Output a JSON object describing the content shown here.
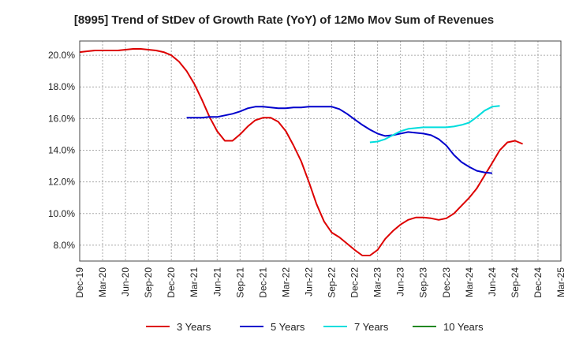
{
  "chart_data": {
    "type": "line",
    "title": "[8995]  Trend of StDev of Growth Rate (YoY) of 12Mo Mov Sum of Revenues",
    "xlabel": "",
    "ylabel": "",
    "ylim": [
      7.0,
      20.9
    ],
    "y_ticks": [
      8.0,
      10.0,
      12.0,
      14.0,
      16.0,
      18.0,
      20.0
    ],
    "y_tick_labels": [
      "8.0%",
      "10.0%",
      "12.0%",
      "14.0%",
      "16.0%",
      "18.0%",
      "20.0%"
    ],
    "x_tick_labels": [
      "Dec-19",
      "Mar-20",
      "Jun-20",
      "Sep-20",
      "Dec-20",
      "Mar-21",
      "Jun-21",
      "Sep-21",
      "Dec-21",
      "Mar-22",
      "Jun-22",
      "Sep-22",
      "Dec-22",
      "Mar-23",
      "Jun-23",
      "Sep-23",
      "Dec-23",
      "Mar-24",
      "Jun-24",
      "Sep-24",
      "Dec-24",
      "Mar-25"
    ],
    "x_start": "Dec-19",
    "grid": true,
    "legend_position": "bottom",
    "series": [
      {
        "name": "3 Years",
        "color": "#dd0000",
        "start_index": 0,
        "values": [
          20.2,
          20.25,
          20.3,
          20.3,
          20.3,
          20.3,
          20.35,
          20.4,
          20.4,
          20.35,
          20.3,
          20.2,
          20.0,
          19.6,
          19.0,
          18.2,
          17.2,
          16.1,
          15.2,
          14.6,
          14.6,
          15.0,
          15.5,
          15.9,
          16.05,
          16.05,
          15.8,
          15.2,
          14.3,
          13.3,
          12.0,
          10.6,
          9.5,
          8.8,
          8.5,
          8.1,
          7.7,
          7.35,
          7.35,
          7.7,
          8.4,
          8.9,
          9.3,
          9.6,
          9.75,
          9.75,
          9.7,
          9.6,
          9.7,
          10.0,
          10.5,
          11.0,
          11.6,
          12.4,
          13.2,
          14.0,
          14.5,
          14.6,
          14.4
        ]
      },
      {
        "name": "5 Years",
        "color": "#0000cc",
        "start_index": 14,
        "values": [
          16.05,
          16.05,
          16.05,
          16.1,
          16.1,
          16.2,
          16.3,
          16.45,
          16.65,
          16.75,
          16.75,
          16.7,
          16.65,
          16.65,
          16.7,
          16.7,
          16.75,
          16.75,
          16.75,
          16.75,
          16.6,
          16.3,
          15.95,
          15.6,
          15.3,
          15.05,
          14.9,
          14.95,
          15.05,
          15.15,
          15.1,
          15.05,
          14.95,
          14.7,
          14.3,
          13.7,
          13.25,
          12.95,
          12.7,
          12.6,
          12.55
        ]
      },
      {
        "name": "7 Years",
        "color": "#00dddd",
        "start_index": 38,
        "values": [
          14.5,
          14.55,
          14.7,
          14.95,
          15.2,
          15.35,
          15.4,
          15.45,
          15.45,
          15.45,
          15.45,
          15.5,
          15.6,
          15.75,
          16.1,
          16.5,
          16.75,
          16.8
        ]
      },
      {
        "name": "10 Years",
        "color": "#228822",
        "start_index": 0,
        "values": []
      }
    ]
  }
}
